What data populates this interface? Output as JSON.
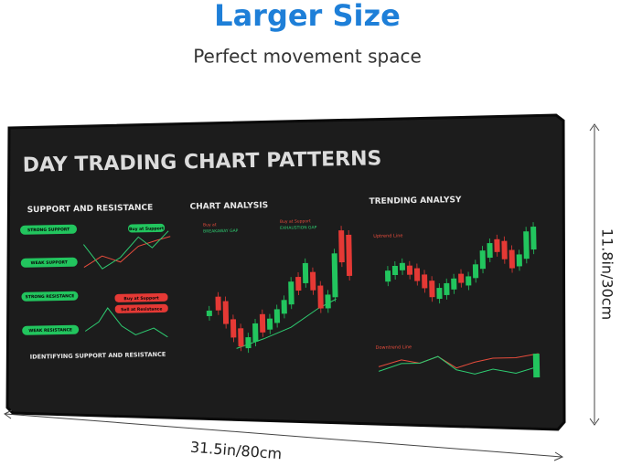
{
  "header": {
    "title": "Larger Size",
    "subtitle": "Perfect movement space"
  },
  "mousepad": {
    "title": "DAY TRADING CHART PATTERNS",
    "panels": [
      {
        "title": "SUPPORT AND RESISTANCE",
        "labels": [
          "STRONG SUPPORT",
          "WEAK SUPPORT",
          "STRONG RESISTANCE",
          "WEAK RESISTANCE"
        ],
        "callouts": [
          "Buy at Support",
          "Buy at Support",
          "Sell at Resistance"
        ],
        "footer": "IDENTIFYING SUPPORT AND RESISTANCE"
      },
      {
        "title": "CHART ANALYSIS",
        "callouts": [
          "Buy at",
          "BREAKAWAY GAP",
          "Buy at Support",
          "EXHAUSTION GAP"
        ]
      },
      {
        "title": "TRENDING ANALYSY",
        "callouts": [
          "Uptrend Line",
          "Downtrend Line"
        ]
      }
    ]
  },
  "dimensions": {
    "height": "11.8in/30cm",
    "width": "31.5in/80cm"
  }
}
